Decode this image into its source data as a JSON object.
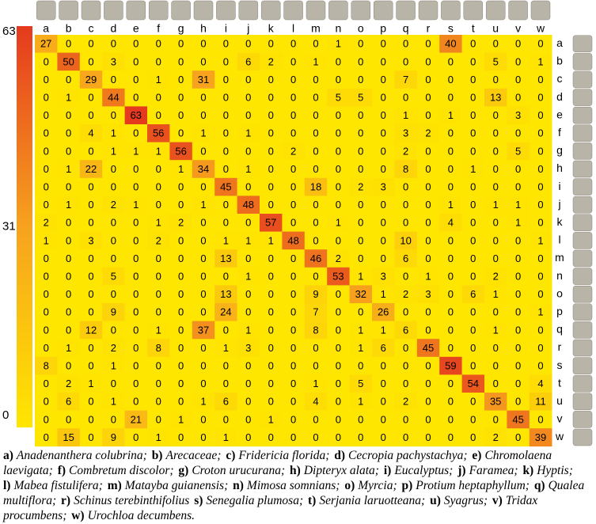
{
  "chart_data": {
    "type": "heatmap",
    "x_categories": [
      "a",
      "b",
      "c",
      "d",
      "e",
      "f",
      "g",
      "h",
      "i",
      "j",
      "k",
      "l",
      "m",
      "n",
      "o",
      "p",
      "q",
      "r",
      "s",
      "t",
      "u",
      "v",
      "w"
    ],
    "y_categories": [
      "a",
      "b",
      "c",
      "d",
      "e",
      "f",
      "g",
      "h",
      "i",
      "j",
      "k",
      "l",
      "m",
      "n",
      "o",
      "p",
      "q",
      "r",
      "s",
      "t",
      "u",
      "v",
      "w"
    ],
    "values": [
      [
        27,
        0,
        0,
        0,
        0,
        0,
        0,
        0,
        0,
        0,
        0,
        0,
        0,
        1,
        0,
        0,
        0,
        0,
        40,
        0,
        0,
        0,
        0
      ],
      [
        0,
        50,
        0,
        3,
        0,
        0,
        0,
        0,
        0,
        6,
        2,
        0,
        1,
        0,
        0,
        0,
        0,
        0,
        0,
        0,
        5,
        0,
        1
      ],
      [
        0,
        0,
        29,
        0,
        0,
        1,
        0,
        31,
        0,
        0,
        0,
        0,
        0,
        0,
        0,
        0,
        7,
        0,
        0,
        0,
        0,
        0,
        0
      ],
      [
        0,
        1,
        0,
        44,
        0,
        0,
        0,
        0,
        0,
        0,
        0,
        0,
        0,
        5,
        5,
        0,
        0,
        0,
        0,
        0,
        13,
        0,
        0
      ],
      [
        0,
        0,
        0,
        0,
        63,
        0,
        0,
        0,
        0,
        0,
        0,
        0,
        0,
        0,
        0,
        0,
        1,
        0,
        1,
        0,
        0,
        3,
        0
      ],
      [
        0,
        0,
        4,
        1,
        0,
        56,
        0,
        1,
        0,
        1,
        0,
        0,
        0,
        0,
        0,
        0,
        3,
        2,
        0,
        0,
        0,
        0,
        0
      ],
      [
        0,
        0,
        0,
        1,
        1,
        1,
        56,
        0,
        0,
        0,
        0,
        2,
        0,
        0,
        0,
        0,
        2,
        0,
        0,
        0,
        0,
        5,
        0
      ],
      [
        0,
        1,
        22,
        0,
        0,
        0,
        1,
        34,
        0,
        1,
        0,
        0,
        0,
        0,
        0,
        0,
        8,
        0,
        0,
        1,
        0,
        0,
        0
      ],
      [
        0,
        0,
        0,
        0,
        0,
        0,
        0,
        0,
        45,
        0,
        0,
        0,
        18,
        0,
        2,
        3,
        0,
        0,
        0,
        0,
        0,
        0,
        0
      ],
      [
        0,
        1,
        0,
        2,
        1,
        0,
        0,
        1,
        0,
        48,
        0,
        0,
        0,
        0,
        0,
        0,
        0,
        0,
        1,
        0,
        1,
        1,
        0
      ],
      [
        2,
        0,
        0,
        0,
        0,
        1,
        2,
        0,
        0,
        0,
        57,
        0,
        0,
        1,
        0,
        0,
        0,
        0,
        4,
        0,
        0,
        1,
        0
      ],
      [
        1,
        0,
        3,
        0,
        0,
        2,
        0,
        0,
        1,
        1,
        1,
        48,
        0,
        0,
        0,
        0,
        10,
        0,
        0,
        0,
        0,
        0,
        1
      ],
      [
        0,
        0,
        0,
        0,
        0,
        0,
        0,
        0,
        13,
        0,
        0,
        0,
        46,
        2,
        0,
        0,
        6,
        0,
        0,
        0,
        0,
        0,
        0
      ],
      [
        0,
        0,
        0,
        5,
        0,
        0,
        0,
        0,
        0,
        1,
        0,
        0,
        0,
        53,
        1,
        3,
        0,
        1,
        0,
        0,
        2,
        0,
        0
      ],
      [
        0,
        0,
        0,
        0,
        0,
        0,
        0,
        0,
        13,
        0,
        0,
        0,
        9,
        0,
        32,
        1,
        2,
        3,
        0,
        6,
        1,
        0,
        0
      ],
      [
        0,
        0,
        0,
        9,
        0,
        0,
        0,
        0,
        24,
        0,
        0,
        0,
        7,
        0,
        0,
        26,
        0,
        0,
        0,
        0,
        0,
        0,
        1
      ],
      [
        0,
        0,
        12,
        0,
        0,
        1,
        0,
        37,
        0,
        1,
        0,
        0,
        8,
        0,
        1,
        1,
        6,
        0,
        0,
        0,
        1,
        0,
        0
      ],
      [
        0,
        1,
        0,
        2,
        0,
        8,
        0,
        0,
        1,
        3,
        0,
        0,
        0,
        0,
        1,
        6,
        0,
        45,
        0,
        0,
        0,
        0,
        0
      ],
      [
        8,
        0,
        0,
        1,
        0,
        0,
        0,
        0,
        0,
        0,
        0,
        0,
        0,
        0,
        0,
        0,
        0,
        0,
        59,
        0,
        0,
        0,
        0
      ],
      [
        0,
        2,
        1,
        0,
        0,
        0,
        0,
        0,
        0,
        0,
        0,
        0,
        1,
        0,
        5,
        0,
        0,
        0,
        0,
        54,
        0,
        0,
        4
      ],
      [
        0,
        6,
        0,
        1,
        0,
        0,
        0,
        1,
        6,
        0,
        0,
        0,
        4,
        0,
        1,
        0,
        2,
        0,
        0,
        0,
        35,
        0,
        11
      ],
      [
        0,
        0,
        0,
        0,
        21,
        0,
        1,
        0,
        0,
        0,
        1,
        0,
        0,
        0,
        0,
        0,
        0,
        0,
        0,
        0,
        0,
        45,
        0
      ],
      [
        0,
        15,
        0,
        9,
        0,
        1,
        0,
        0,
        1,
        0,
        0,
        0,
        0,
        0,
        0,
        0,
        0,
        0,
        0,
        0,
        2,
        0,
        39
      ]
    ],
    "clim": [
      0,
      63
    ],
    "colorbar_ticks": [
      0,
      31,
      63
    ],
    "colors": [
      "#ffe600",
      "#f7a21e",
      "#e53a1e"
    ]
  },
  "caption": [
    {
      "key": "a)",
      "name": "Anadenanthera colubrina;"
    },
    {
      "key": "b)",
      "name": "Arecaceae;"
    },
    {
      "key": "c)",
      "name": "Fridericia florida;"
    },
    {
      "key": "d)",
      "name": "Cecropia pachystachya;"
    },
    {
      "key": "e)",
      "name": "Chromolaena laevigata;"
    },
    {
      "key": "f)",
      "name": "Combretum discolor;"
    },
    {
      "key": "g)",
      "name": "Croton urucurana;"
    },
    {
      "key": "h)",
      "name": "Dipteryx alata;"
    },
    {
      "key": "i)",
      "name": "Eucalyptus;"
    },
    {
      "key": "j)",
      "name": "Faramea;"
    },
    {
      "key": "k)",
      "name": "Hyptis;"
    },
    {
      "key": "l)",
      "name": "Mabea fistulifera;"
    },
    {
      "key": "m)",
      "name": "Matayba guianensis;"
    },
    {
      "key": "n)",
      "name": "Mimosa somnians;"
    },
    {
      "key": "o)",
      "name": "Myrcia;"
    },
    {
      "key": "p)",
      "name": "Protium heptaphyllum;"
    },
    {
      "key": "q)",
      "name": "Qualea multiflora;"
    },
    {
      "key": "r)",
      "name": "Schinus terebinthifolius"
    },
    {
      "key": "s)",
      "name": "Senegalia plumosa;"
    },
    {
      "key": "t)",
      "name": "Serjania laruotteana;"
    },
    {
      "key": "u)",
      "name": "Syagrus;"
    },
    {
      "key": "v)",
      "name": "Tridax procumbens;"
    },
    {
      "key": "w)",
      "name": "Urochloa decumbens."
    }
  ]
}
